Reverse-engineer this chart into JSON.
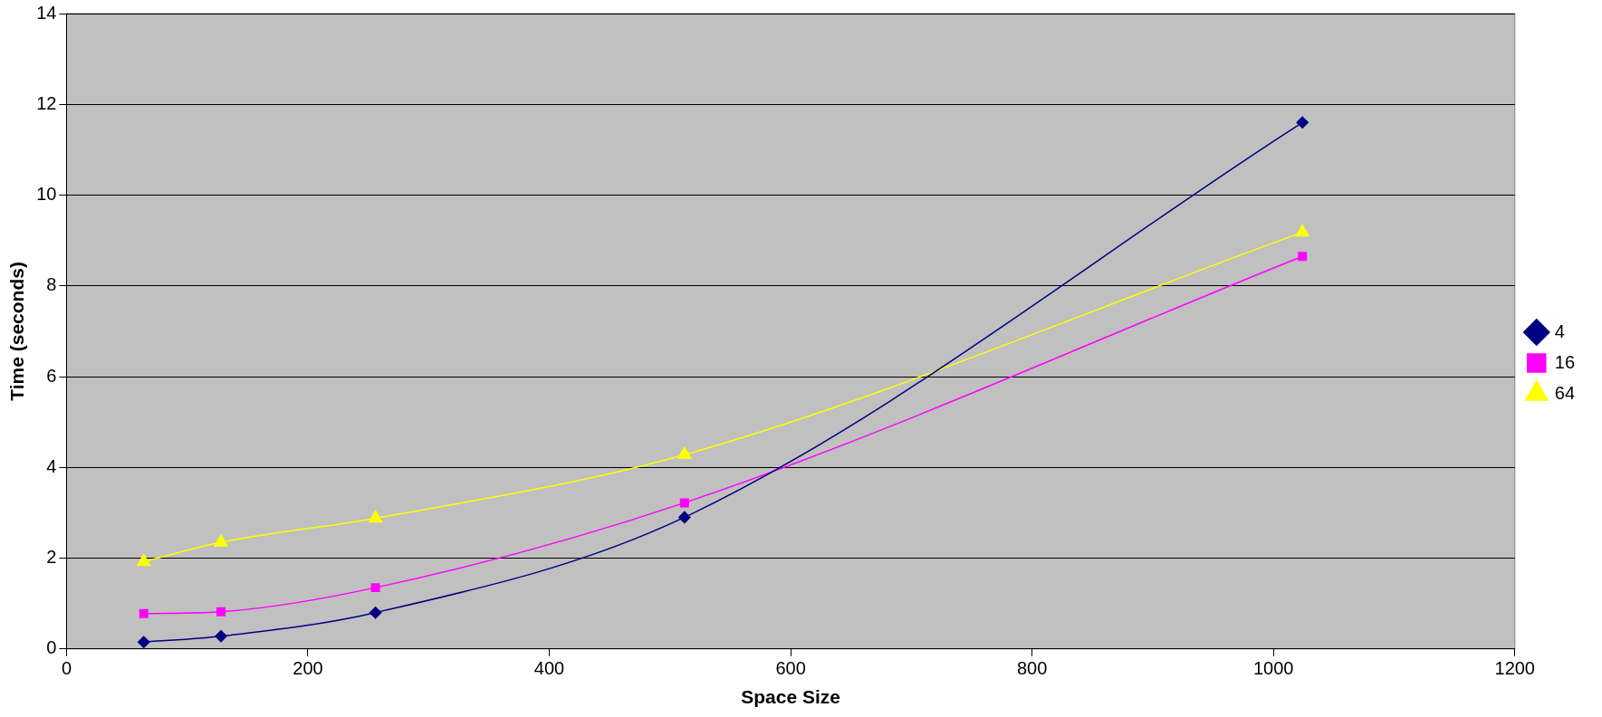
{
  "chart_data": {
    "type": "line",
    "xlabel": "Space Size",
    "ylabel": "Time (seconds)",
    "x": [
      64,
      128,
      256,
      512,
      1024
    ],
    "series": [
      {
        "name": "4",
        "color": "#000080",
        "marker": "diamond",
        "values": [
          0.15,
          0.28,
          0.8,
          2.9,
          11.6
        ]
      },
      {
        "name": "16",
        "color": "#ff00ff",
        "marker": "square",
        "values": [
          0.78,
          0.82,
          1.35,
          3.22,
          8.65
        ]
      },
      {
        "name": "64",
        "color": "#ffff00",
        "marker": "triangle",
        "values": [
          1.92,
          2.35,
          2.88,
          4.28,
          9.18
        ]
      }
    ],
    "xlim": [
      0,
      1200
    ],
    "xticks": [
      0,
      200,
      400,
      600,
      800,
      1000,
      1200
    ],
    "ylim": [
      0,
      14
    ],
    "yticks": [
      0,
      2,
      4,
      6,
      8,
      10,
      12,
      14
    ],
    "grid": "y",
    "legend": "right",
    "line_style": "solid"
  }
}
